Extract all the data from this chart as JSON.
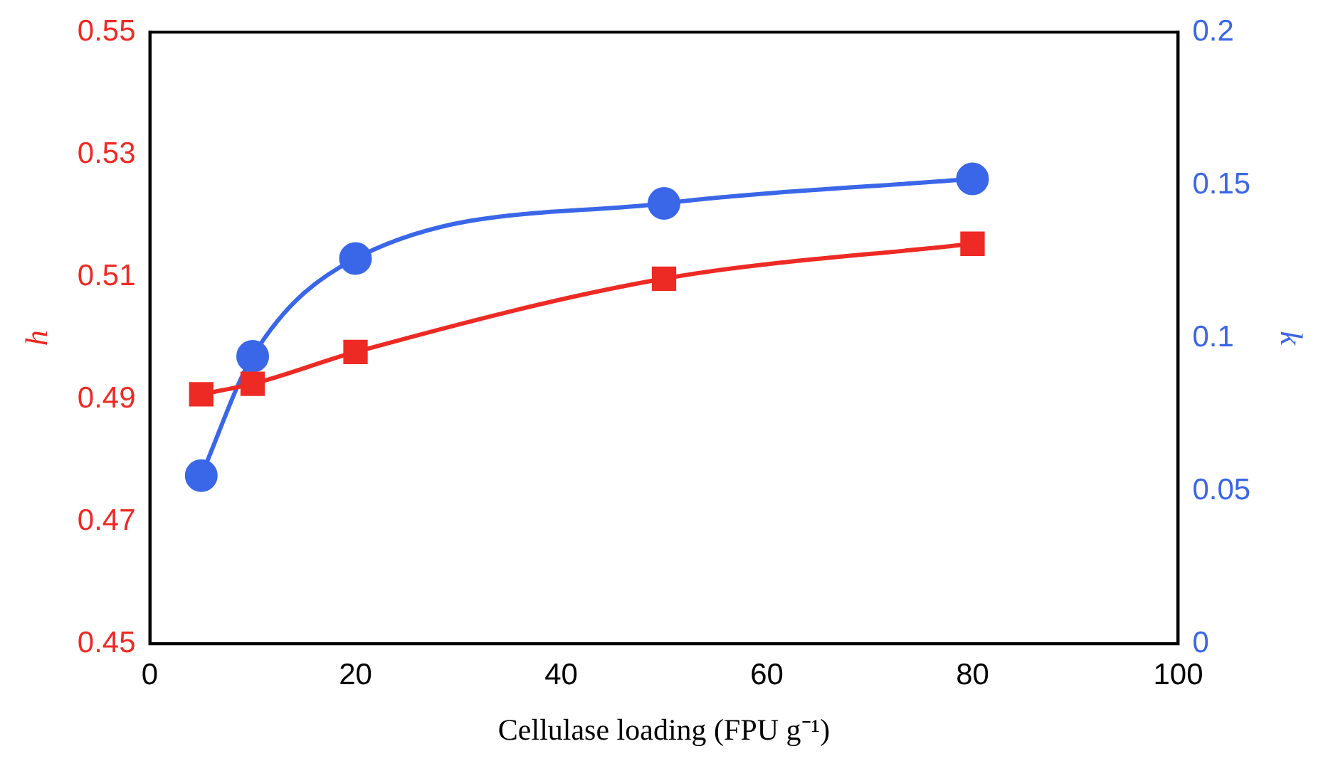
{
  "chart_data": {
    "type": "line",
    "xlabel": "Cellulase loading (FPU g⁻¹)",
    "ylabel": "h",
    "y2label": "k",
    "x": [
      5,
      10,
      20,
      50,
      80
    ],
    "series": [
      {
        "color": "#ee2a24",
        "marker": "square",
        "values": [
          0.4908,
          0.4925,
          0.4977,
          0.5097,
          0.5154
        ]
      },
      {
        "color": "#3a66e8",
        "marker": "circle",
        "axis": "y2",
        "values": [
          0.055,
          0.094,
          0.126,
          0.144,
          0.152
        ]
      }
    ],
    "xlim": [
      0,
      100
    ],
    "xticks": [
      0,
      20,
      40,
      60,
      80,
      100
    ],
    "ylim": [
      0.45,
      0.55
    ],
    "yticks": [
      0.45,
      0.47,
      0.49,
      0.51,
      0.53,
      0.55
    ],
    "y2lim": [
      0,
      0.2
    ],
    "y2ticks": [
      0,
      0.05,
      0.1,
      0.15,
      0.2
    ],
    "grid": false,
    "legend": false,
    "line_style": "solid"
  }
}
